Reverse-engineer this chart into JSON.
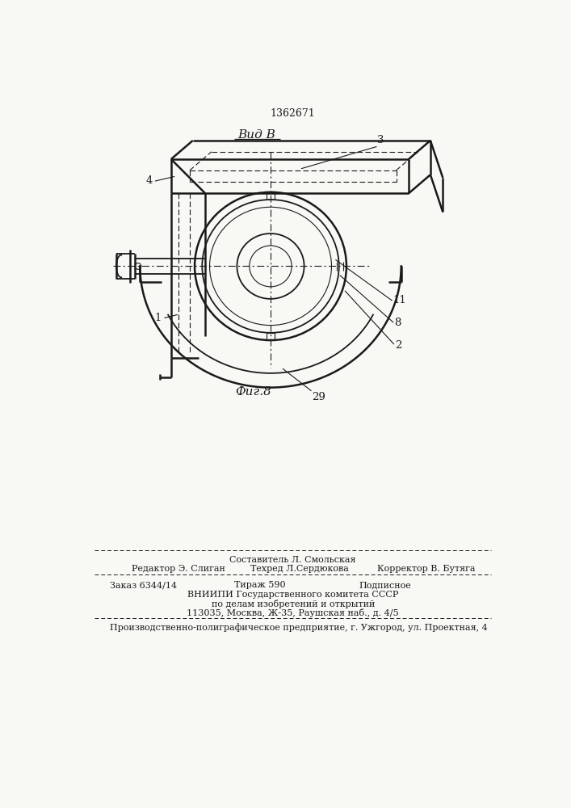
{
  "patent_number": "1362671",
  "view_label": "Вид В",
  "fig_label": "Фиг.8",
  "bg_color": "#f8f8f5",
  "line_color": "#1a1a1a",
  "footer_line1": "Составитель Л. Смольская",
  "footer_line2_left": "Редактор Э. Слиган",
  "footer_line2_mid": "Техред Л.Сердюкова",
  "footer_line2_right": "Корректор В. Бутяга",
  "footer_line3_left": "Заказ 6344/14",
  "footer_line3_mid": "Тираж 590",
  "footer_line3_right": "Подписное",
  "footer_line4": "ВНИИПИ Государственного комитета СССР",
  "footer_line5": "по делам изобретений и открытий",
  "footer_line6": "113035, Москва, Ж-35, Раушская наб., д. 4/5",
  "footer_line7": "Производственно-полиграфическое предприятие, г. Ужгород, ул. Проектная, 4"
}
